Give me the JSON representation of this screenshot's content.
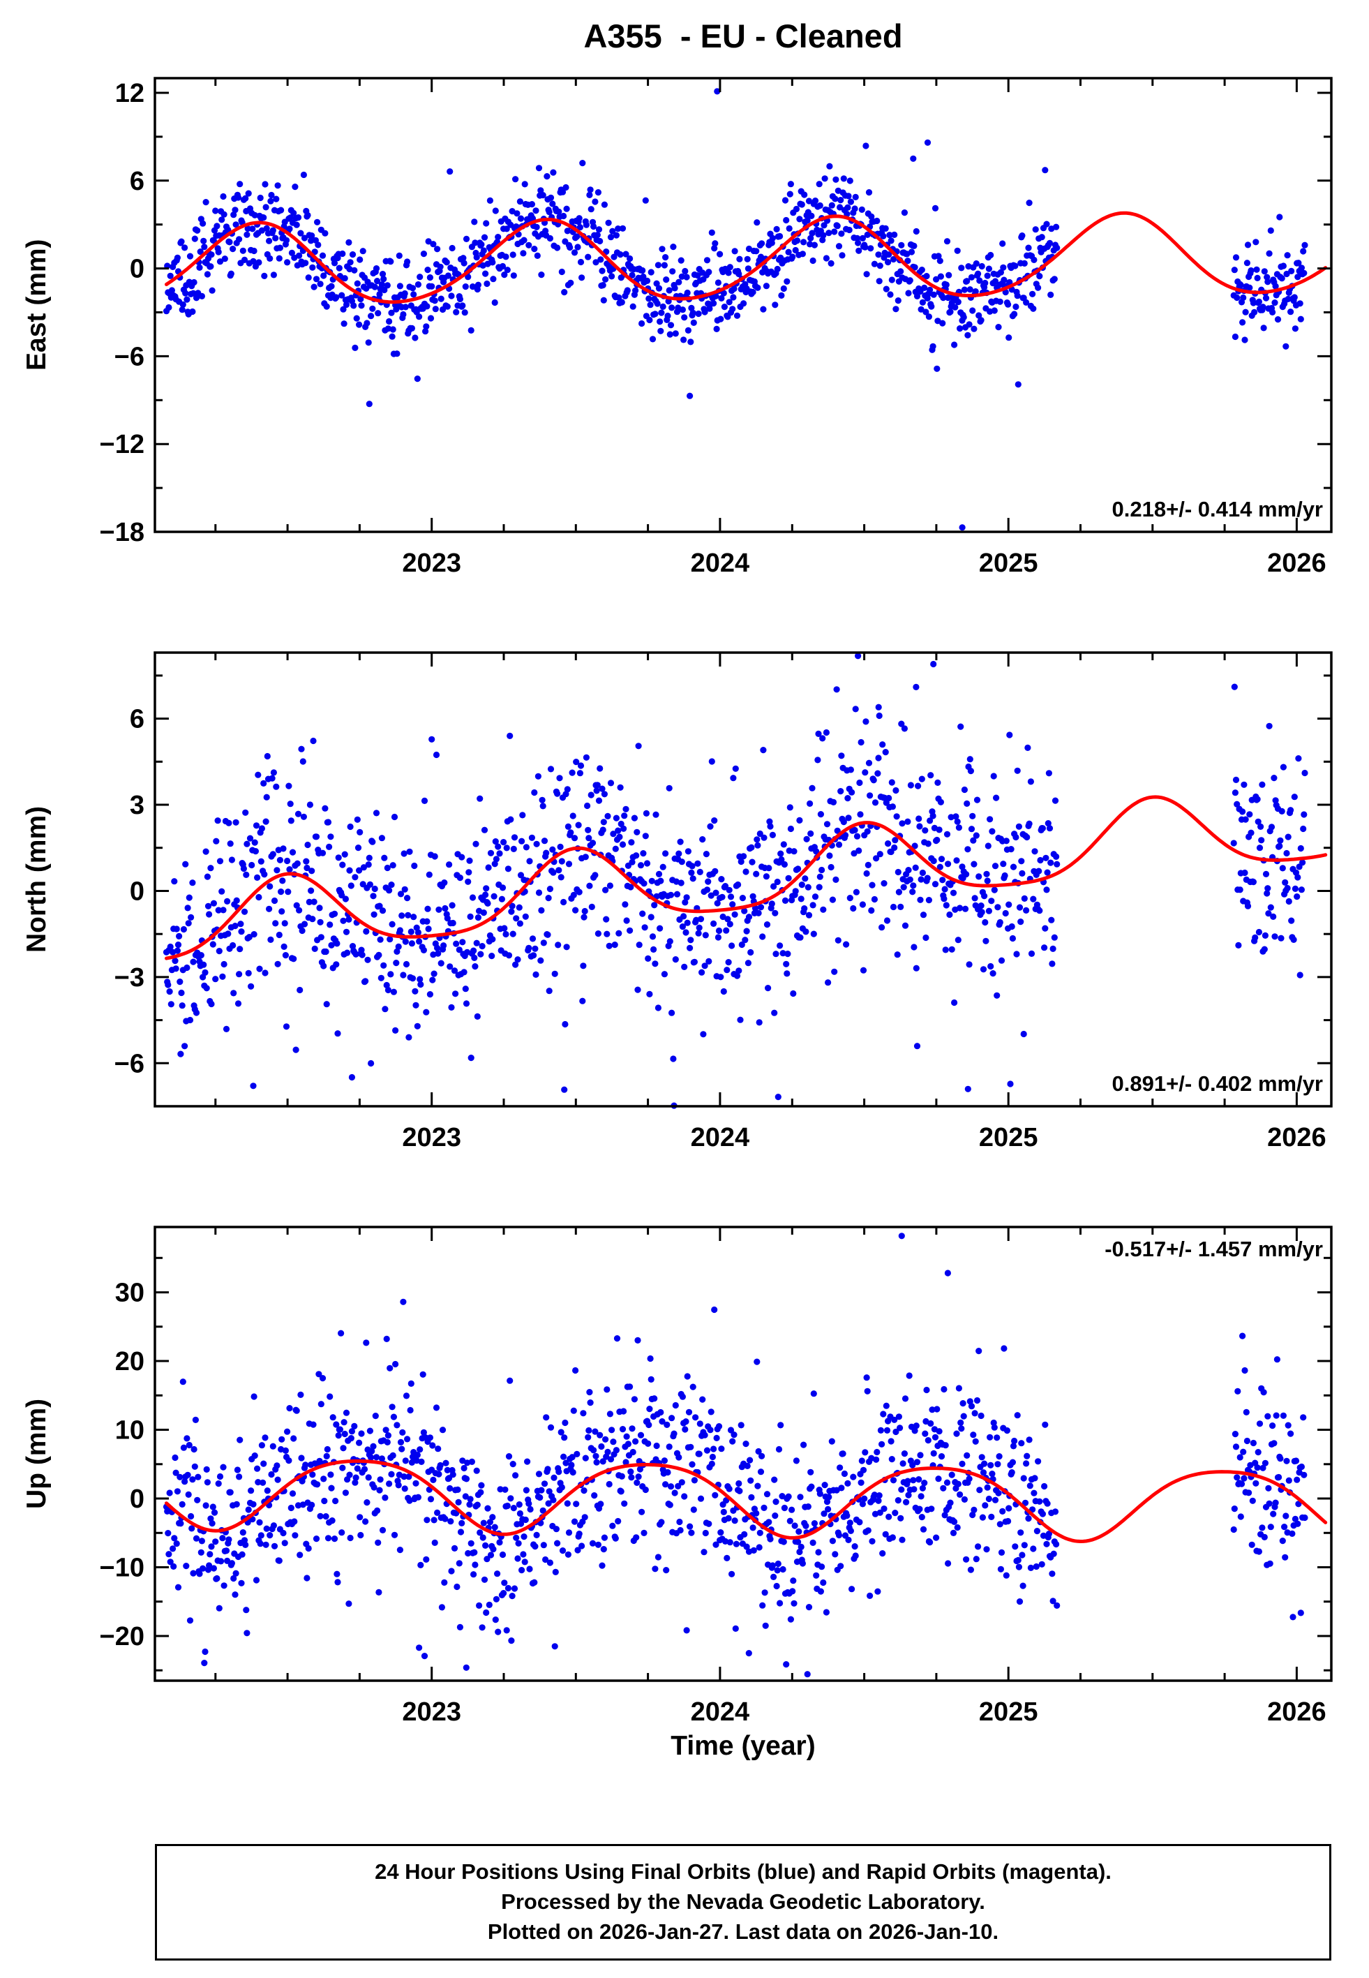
{
  "title": "A355  - EU - Cleaned",
  "xlabel": "Time (year)",
  "colors": {
    "scatter": "#0000ee",
    "curve": "#ff0000",
    "frame": "#000000"
  },
  "footer": {
    "line1": "24 Hour Positions Using Final Orbits (blue) and Rapid Orbits (magenta).",
    "line2": "Processed by the Nevada Geodetic Laboratory.",
    "line3": "Plotted on 2026-Jan-27. Last data on 2026-Jan-10."
  },
  "chart_data": [
    {
      "name": "east",
      "type": "scatter",
      "ylabel": "East (mm)",
      "annotation": "0.218+/- 0.414 mm/yr",
      "annotation_pos": "bottom-right",
      "x_range": [
        2022.04,
        2026.12
      ],
      "y_range": [
        -18,
        13
      ],
      "x_ticks": [
        2023,
        2024,
        2025,
        2026
      ],
      "y_ticks": [
        -18,
        -12,
        -6,
        0,
        6,
        12
      ],
      "model": {
        "offset": 0.45,
        "trend": 0.218,
        "t_ref": 2024,
        "annual_amp": 2.75,
        "annual_phase": 0.14,
        "semi_amp": 0.3,
        "semi_phase": 0.8
      },
      "curve_range": [
        2022.08,
        2026.1
      ],
      "scatter": {
        "start": 2022.08,
        "end": 2026.03,
        "gaps": [
          [
            2025.17,
            2025.78
          ]
        ],
        "noise_sd": 1.55,
        "seed": 11,
        "outlier_frac": 0.05,
        "outlier_mult": 2.4
      },
      "outliers": [
        [
          2024.84,
          -17.7
        ],
        [
          2023.99,
          12.1
        ],
        [
          2024.72,
          8.6
        ],
        [
          2024.67,
          7.5
        ]
      ]
    },
    {
      "name": "north",
      "type": "scatter",
      "ylabel": "North (mm)",
      "annotation": "0.891+/- 0.402 mm/yr",
      "annotation_pos": "bottom-right",
      "x_range": [
        2022.04,
        2026.12
      ],
      "y_range": [
        -7.5,
        8.3
      ],
      "x_ticks": [
        2023,
        2024,
        2025,
        2026
      ],
      "y_ticks": [
        -6,
        -3,
        0,
        3,
        6
      ],
      "model": {
        "offset": 0.35,
        "trend": 0.891,
        "t_ref": 2024,
        "annual_amp": 1.3,
        "annual_phase": 0.25,
        "semi_amp": 0.28,
        "semi_phase": 0.875
      },
      "curve_range": [
        2022.08,
        2026.1
      ],
      "scatter": {
        "start": 2022.08,
        "end": 2026.03,
        "gaps": [
          [
            2025.17,
            2025.78
          ]
        ],
        "noise_sd": 1.85,
        "seed": 22,
        "outlier_frac": 0.05,
        "outlier_mult": 2.3
      },
      "outliers": [
        [
          2024.74,
          7.9
        ],
        [
          2024.68,
          7.1
        ],
        [
          2024.86,
          -6.9
        ],
        [
          2024.55,
          6.4
        ]
      ]
    },
    {
      "name": "up",
      "type": "scatter",
      "ylabel": "Up (mm)",
      "annotation": "-0.517+/- 1.457 mm/yr",
      "annotation_pos": "top-right",
      "x_range": [
        2022.04,
        2026.12
      ],
      "y_range": [
        -26.5,
        39.5
      ],
      "x_ticks": [
        2023,
        2024,
        2025,
        2026
      ],
      "y_ticks": [
        -20,
        -10,
        0,
        10,
        20,
        30
      ],
      "model": {
        "offset": 0.4,
        "trend": -0.517,
        "t_ref": 2024,
        "annual_amp": 5.2,
        "annual_phase": 0.5,
        "semi_amp": 0.8,
        "semi_phase": 0.875
      },
      "curve_range": [
        2022.08,
        2026.1
      ],
      "scatter": {
        "start": 2022.08,
        "end": 2026.03,
        "gaps": [
          [
            2025.17,
            2025.78
          ]
        ],
        "noise_sd": 6.3,
        "seed": 33,
        "outlier_frac": 0.05,
        "outlier_mult": 2.2
      },
      "outliers": [
        [
          2024.63,
          38.2
        ],
        [
          2024.79,
          32.8
        ],
        [
          2023.12,
          -24.6
        ],
        [
          2024.1,
          -22.5
        ]
      ]
    }
  ]
}
